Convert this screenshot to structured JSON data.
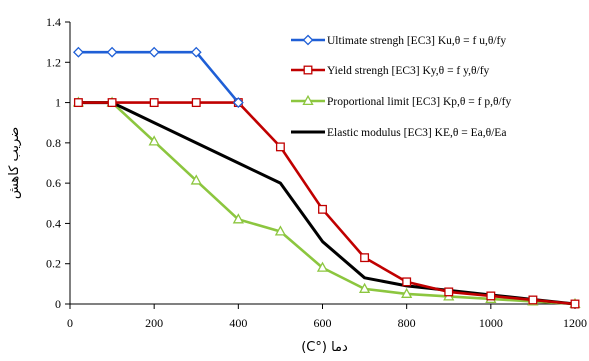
{
  "chart_data": {
    "type": "line",
    "xlabel": "دما (°C)",
    "ylabel": "ضریب کاهش",
    "xlim": [
      0,
      1200
    ],
    "ylim": [
      0,
      1.4
    ],
    "xticks": [
      0,
      200,
      400,
      600,
      800,
      1000,
      1200
    ],
    "yticks": [
      0,
      0.2,
      0.4,
      0.6,
      0.8,
      1,
      1.2,
      1.4
    ],
    "legend_position": "top-right",
    "grid": false,
    "series": [
      {
        "name": "Ultimate strengh [EC3] Ku,θ = f u,θ/fy",
        "color": "#1f5fd6",
        "marker": "diamond",
        "x": [
          20,
          100,
          200,
          300,
          400
        ],
        "y": [
          1.25,
          1.25,
          1.25,
          1.25,
          1.0
        ]
      },
      {
        "name": "Yield strengh [EC3]  Ky,θ = f y,θ/fy",
        "color": "#c00000",
        "marker": "square",
        "x": [
          20,
          100,
          200,
          300,
          400,
          500,
          600,
          700,
          800,
          900,
          1000,
          1100,
          1200
        ],
        "y": [
          1.0,
          1.0,
          1.0,
          1.0,
          1.0,
          0.78,
          0.47,
          0.23,
          0.11,
          0.06,
          0.04,
          0.02,
          0.0
        ]
      },
      {
        "name": "Proportional limit [EC3]   Kp,θ = f p,θ/fy",
        "color": "#8cc63f",
        "marker": "triangle",
        "x": [
          20,
          100,
          200,
          300,
          400,
          500,
          600,
          700,
          800,
          900,
          1000,
          1100,
          1200
        ],
        "y": [
          1.0,
          1.0,
          0.807,
          0.613,
          0.42,
          0.36,
          0.18,
          0.075,
          0.05,
          0.0375,
          0.025,
          0.0125,
          0.0
        ]
      },
      {
        "name": "Elastic modulus [EC3]  KE,θ = Ea,θ/Ea",
        "color": "#000000",
        "marker": "none",
        "x": [
          20,
          100,
          200,
          300,
          400,
          500,
          600,
          700,
          800,
          900,
          1000,
          1100,
          1200
        ],
        "y": [
          1.0,
          1.0,
          0.9,
          0.8,
          0.7,
          0.6,
          0.31,
          0.13,
          0.09,
          0.0675,
          0.045,
          0.0225,
          0.0
        ]
      }
    ]
  }
}
